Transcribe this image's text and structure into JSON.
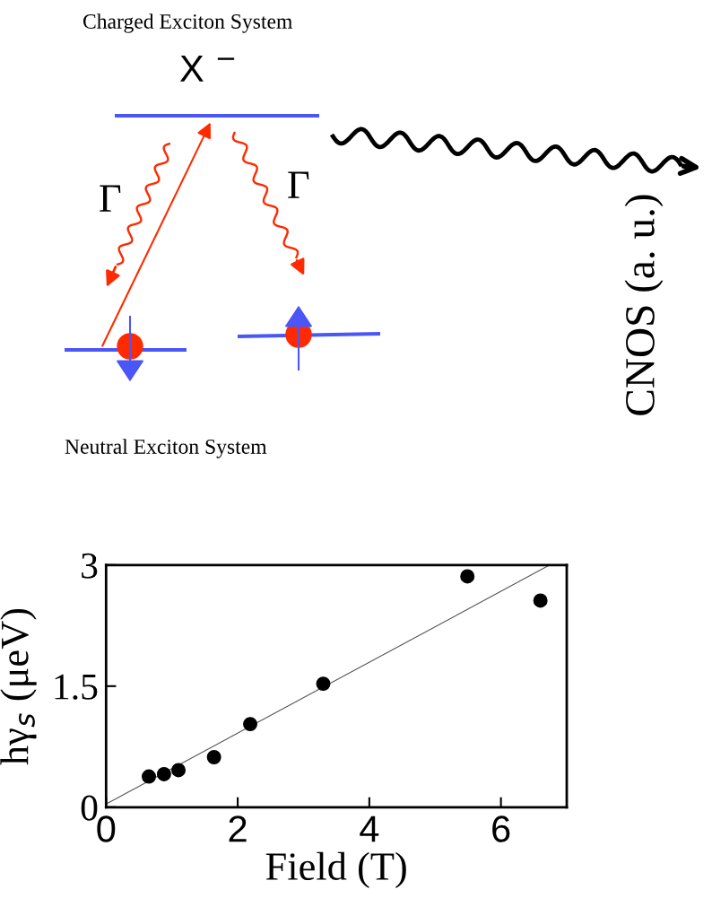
{
  "chart_data": {
    "type": "scatter",
    "xlabel": "Field (T)",
    "ylabel": "hγ$_{s}$ (μeV)",
    "xlim": [
      0,
      7
    ],
    "xticks": [
      0,
      2,
      4,
      6
    ],
    "ylim": [
      0,
      3
    ],
    "yticks": [
      0,
      1.5,
      3
    ],
    "grid": false,
    "series": [
      {
        "color": "#000000",
        "marker": "circle",
        "x": [
          0.65,
          0.88,
          1.1,
          1.64,
          2.19,
          3.3,
          5.49,
          6.6
        ],
        "values": [
          0.38,
          0.41,
          0.46,
          0.62,
          1.03,
          1.53,
          2.86,
          2.56
        ]
      },
      {
        "type": "line",
        "color": "#555555",
        "marker": "none",
        "line_style": "solid",
        "x": [
          0,
          6.74
        ],
        "values": [
          0.04,
          3
        ]
      }
    ],
    "annotations": [
      "Charged Exciton System",
      "X $^{−}$",
      "Γ",
      "Γ",
      "Neutral Exciton System",
      "CNOS (a. u.)"
    ]
  }
}
